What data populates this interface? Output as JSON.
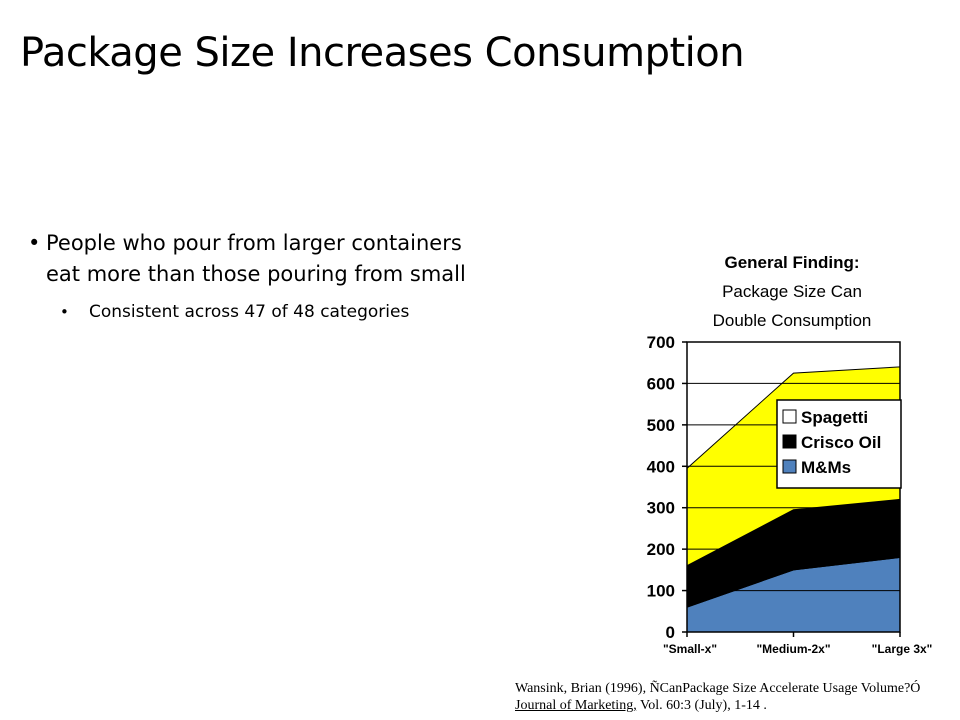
{
  "slide": {
    "title": "Package Size Increases Consumption",
    "bullet_main": "People who pour from larger containers eat more than those pouring from small",
    "bullet_sub": "Consistent across 47 of 48 categories"
  },
  "chart_caption": {
    "line1": "General Finding:",
    "line2": "Package Size Can",
    "line3": "Double Consumption"
  },
  "chart_data": {
    "type": "area",
    "stacked": true,
    "categories": [
      "\"Small-x\"",
      "\"Medium-2x\"",
      "\"Large 3x\""
    ],
    "ylim": [
      0,
      700
    ],
    "yticks": [
      0,
      100,
      200,
      300,
      400,
      500,
      600,
      700
    ],
    "grid": true,
    "legend_position": "right",
    "series": [
      {
        "name": "M&Ms",
        "values": [
          60,
          150,
          180
        ],
        "color": "#4f81bd"
      },
      {
        "name": "Crisco Oil",
        "values": [
          100,
          145,
          140
        ],
        "color": "#000000"
      },
      {
        "name": "Spagetti",
        "values": [
          235,
          330,
          320
        ],
        "color": "#ffff00"
      }
    ]
  },
  "citation": {
    "line1": "Wansink, Brian (1996), ÑCanPackage Size Accelerate Usage Volume?Ó",
    "journal": "Journal of Marketing,",
    "rest": " Vol. 60:3  (July), 1-14 ."
  }
}
